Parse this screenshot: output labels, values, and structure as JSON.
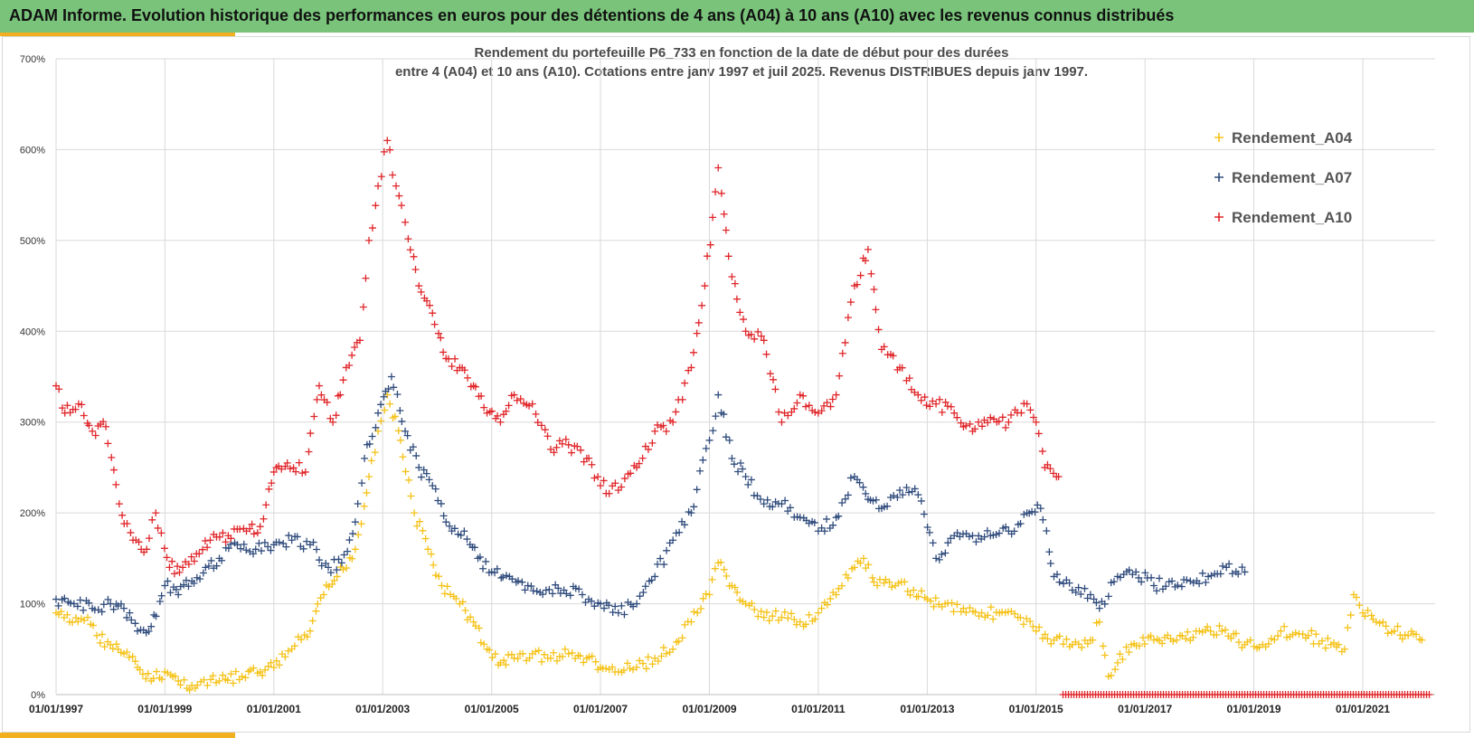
{
  "header": {
    "title": "ADAM Informe. Evolution historique des performances en euros pour des détentions de 4 ans (A04) à 10 ans (A10) avec les revenus connus distribués"
  },
  "chart_data": {
    "type": "scatter",
    "title_line1": "Rendement du portefeuille P6_733 en fonction de la date de début pour des durées",
    "title_line2": "entre 4 (A04) et 10 ans (A10). Cotations entre janv 1997 et juil 2025. Revenus DISTRIBUES depuis janv 1997.",
    "xlabel": "",
    "ylabel": "",
    "xlim": [
      "1997-01-01",
      "2022-05-01"
    ],
    "ylim": [
      0,
      700
    ],
    "y_ticks": [
      "0%",
      "100%",
      "200%",
      "300%",
      "400%",
      "500%",
      "600%",
      "700%"
    ],
    "x_ticks": [
      "01/01/1997",
      "01/01/1999",
      "01/01/2001",
      "01/01/2003",
      "01/01/2005",
      "01/01/2007",
      "01/01/2009",
      "01/01/2011",
      "01/01/2013",
      "01/01/2015",
      "01/01/2017",
      "01/01/2019",
      "01/01/2021"
    ],
    "grid": true,
    "legend_position": "top-right",
    "marker": "+",
    "series": [
      {
        "name": "Rendement_A04",
        "color": "#f5c218",
        "points": [
          [
            "1997-01-01",
            90
          ],
          [
            "1997-04-01",
            80
          ],
          [
            "1997-08-01",
            85
          ],
          [
            "1997-10-01",
            65
          ],
          [
            "1998-01-01",
            55
          ],
          [
            "1998-04-01",
            45
          ],
          [
            "1998-07-01",
            30
          ],
          [
            "1998-10-01",
            15
          ],
          [
            "1999-01-01",
            25
          ],
          [
            "1999-04-01",
            15
          ],
          [
            "1999-07-01",
            10
          ],
          [
            "2000-01-01",
            15
          ],
          [
            "2000-06-01",
            20
          ],
          [
            "2000-10-01",
            25
          ],
          [
            "2001-01-01",
            30
          ],
          [
            "2001-05-01",
            50
          ],
          [
            "2001-09-01",
            70
          ],
          [
            "2001-12-01",
            110
          ],
          [
            "2002-03-01",
            130
          ],
          [
            "2002-07-01",
            160
          ],
          [
            "2002-10-01",
            240
          ],
          [
            "2002-12-01",
            290
          ],
          [
            "2003-02-01",
            330
          ],
          [
            "2003-05-01",
            280
          ],
          [
            "2003-08-01",
            200
          ],
          [
            "2003-11-01",
            160
          ],
          [
            "2004-02-01",
            120
          ],
          [
            "2004-06-01",
            100
          ],
          [
            "2004-09-01",
            80
          ],
          [
            "2004-12-01",
            50
          ],
          [
            "2005-03-01",
            35
          ],
          [
            "2005-06-01",
            40
          ],
          [
            "2005-10-01",
            45
          ],
          [
            "2006-02-01",
            40
          ],
          [
            "2006-06-01",
            45
          ],
          [
            "2006-10-01",
            40
          ],
          [
            "2007-01-01",
            30
          ],
          [
            "2007-05-01",
            25
          ],
          [
            "2007-09-01",
            30
          ],
          [
            "2008-01-01",
            40
          ],
          [
            "2008-05-01",
            50
          ],
          [
            "2008-09-01",
            80
          ],
          [
            "2009-01-01",
            110
          ],
          [
            "2009-03-01",
            145
          ],
          [
            "2009-06-01",
            120
          ],
          [
            "2009-09-01",
            100
          ],
          [
            "2010-01-01",
            85
          ],
          [
            "2010-05-01",
            85
          ],
          [
            "2010-09-01",
            80
          ],
          [
            "2011-01-01",
            90
          ],
          [
            "2011-05-01",
            110
          ],
          [
            "2011-09-01",
            140
          ],
          [
            "2011-11-01",
            150
          ],
          [
            "2012-02-01",
            120
          ],
          [
            "2012-06-01",
            120
          ],
          [
            "2012-10-01",
            115
          ],
          [
            "2013-01-01",
            105
          ],
          [
            "2013-05-01",
            100
          ],
          [
            "2013-09-01",
            95
          ],
          [
            "2014-01-01",
            90
          ],
          [
            "2014-05-01",
            90
          ],
          [
            "2014-09-01",
            85
          ],
          [
            "2015-01-01",
            70
          ],
          [
            "2015-05-01",
            60
          ],
          [
            "2015-09-01",
            55
          ],
          [
            "2016-01-01",
            60
          ],
          [
            "2016-03-01",
            80
          ],
          [
            "2016-05-01",
            20
          ],
          [
            "2016-07-01",
            35
          ],
          [
            "2016-10-01",
            55
          ],
          [
            "2017-03-01",
            60
          ],
          [
            "2017-08-01",
            60
          ],
          [
            "2018-01-01",
            70
          ],
          [
            "2018-06-01",
            70
          ],
          [
            "2018-11-01",
            55
          ],
          [
            "2019-03-01",
            55
          ],
          [
            "2019-07-01",
            70
          ],
          [
            "2020-01-01",
            65
          ],
          [
            "2020-06-01",
            55
          ],
          [
            "2020-09-01",
            50
          ],
          [
            "2020-11-01",
            110
          ],
          [
            "2021-01-01",
            90
          ],
          [
            "2021-04-01",
            80
          ],
          [
            "2021-08-01",
            70
          ],
          [
            "2021-11-01",
            65
          ],
          [
            "2022-02-01",
            60
          ]
        ]
      },
      {
        "name": "Rendement_A07",
        "color": "#2f4b7c",
        "points": [
          [
            "1997-01-01",
            105
          ],
          [
            "1997-05-01",
            100
          ],
          [
            "1997-09-01",
            95
          ],
          [
            "1998-01-01",
            100
          ],
          [
            "1998-04-01",
            95
          ],
          [
            "1998-07-01",
            70
          ],
          [
            "1998-10-01",
            75
          ],
          [
            "1999-01-01",
            120
          ],
          [
            "1999-04-01",
            110
          ],
          [
            "1999-07-01",
            125
          ],
          [
            "1999-10-01",
            140
          ],
          [
            "2000-01-01",
            150
          ],
          [
            "2000-05-01",
            165
          ],
          [
            "2000-09-01",
            160
          ],
          [
            "2001-01-01",
            165
          ],
          [
            "2001-05-01",
            170
          ],
          [
            "2001-09-01",
            165
          ],
          [
            "2002-01-01",
            140
          ],
          [
            "2002-04-01",
            145
          ],
          [
            "2002-07-01",
            190
          ],
          [
            "2002-09-01",
            260
          ],
          [
            "2002-12-01",
            310
          ],
          [
            "2003-03-01",
            350
          ],
          [
            "2003-06-01",
            290
          ],
          [
            "2003-09-01",
            250
          ],
          [
            "2003-12-01",
            230
          ],
          [
            "2004-03-01",
            190
          ],
          [
            "2004-07-01",
            180
          ],
          [
            "2004-10-01",
            150
          ],
          [
            "2005-01-01",
            135
          ],
          [
            "2005-05-01",
            130
          ],
          [
            "2005-09-01",
            120
          ],
          [
            "2006-01-01",
            115
          ],
          [
            "2006-05-01",
            115
          ],
          [
            "2006-09-01",
            110
          ],
          [
            "2007-01-01",
            100
          ],
          [
            "2007-05-01",
            90
          ],
          [
            "2007-09-01",
            100
          ],
          [
            "2008-01-01",
            130
          ],
          [
            "2008-05-01",
            170
          ],
          [
            "2008-09-01",
            200
          ],
          [
            "2009-01-01",
            280
          ],
          [
            "2009-03-01",
            330
          ],
          [
            "2009-06-01",
            260
          ],
          [
            "2009-09-01",
            240
          ],
          [
            "2010-01-01",
            210
          ],
          [
            "2010-05-01",
            210
          ],
          [
            "2010-09-01",
            195
          ],
          [
            "2011-01-01",
            180
          ],
          [
            "2011-05-01",
            195
          ],
          [
            "2011-09-01",
            240
          ],
          [
            "2011-12-01",
            215
          ],
          [
            "2012-03-01",
            205
          ],
          [
            "2012-07-01",
            225
          ],
          [
            "2012-11-01",
            220
          ],
          [
            "2013-03-01",
            150
          ],
          [
            "2013-07-01",
            175
          ],
          [
            "2013-11-01",
            175
          ],
          [
            "2014-03-01",
            175
          ],
          [
            "2014-07-01",
            180
          ],
          [
            "2014-11-01",
            200
          ],
          [
            "2015-02-01",
            205
          ],
          [
            "2015-05-01",
            130
          ],
          [
            "2015-09-01",
            115
          ],
          [
            "2016-01-01",
            110
          ],
          [
            "2016-03-01",
            95
          ],
          [
            "2016-07-01",
            130
          ],
          [
            "2016-11-01",
            135
          ],
          [
            "2017-03-01",
            120
          ],
          [
            "2017-07-01",
            125
          ],
          [
            "2017-11-01",
            125
          ],
          [
            "2018-03-01",
            130
          ],
          [
            "2018-07-01",
            140
          ],
          [
            "2018-11-01",
            135
          ]
        ]
      },
      {
        "name": "Rendement_A10",
        "color": "#e0262a",
        "points": [
          [
            "1997-01-01",
            340
          ],
          [
            "1997-03-01",
            310
          ],
          [
            "1997-06-01",
            320
          ],
          [
            "1997-09-01",
            290
          ],
          [
            "1997-12-01",
            295
          ],
          [
            "1998-03-01",
            210
          ],
          [
            "1998-06-01",
            170
          ],
          [
            "1998-09-01",
            160
          ],
          [
            "1998-11-01",
            200
          ],
          [
            "1999-02-01",
            140
          ],
          [
            "1999-05-01",
            140
          ],
          [
            "1999-08-01",
            155
          ],
          [
            "1999-11-01",
            170
          ],
          [
            "2000-03-01",
            175
          ],
          [
            "2000-07-01",
            180
          ],
          [
            "2000-10-01",
            185
          ],
          [
            "2001-01-01",
            245
          ],
          [
            "2001-04-01",
            255
          ],
          [
            "2001-08-01",
            245
          ],
          [
            "2001-11-01",
            340
          ],
          [
            "2002-02-01",
            300
          ],
          [
            "2002-05-01",
            360
          ],
          [
            "2002-08-01",
            390
          ],
          [
            "2002-10-01",
            500
          ],
          [
            "2002-12-01",
            560
          ],
          [
            "2003-02-01",
            610
          ],
          [
            "2003-04-01",
            560
          ],
          [
            "2003-06-01",
            520
          ],
          [
            "2003-09-01",
            450
          ],
          [
            "2003-12-01",
            420
          ],
          [
            "2004-03-01",
            370
          ],
          [
            "2004-06-01",
            360
          ],
          [
            "2004-09-01",
            340
          ],
          [
            "2004-12-01",
            310
          ],
          [
            "2005-03-01",
            300
          ],
          [
            "2005-06-01",
            330
          ],
          [
            "2005-10-01",
            320
          ],
          [
            "2006-02-01",
            270
          ],
          [
            "2006-06-01",
            275
          ],
          [
            "2006-10-01",
            260
          ],
          [
            "2007-01-01",
            230
          ],
          [
            "2007-05-01",
            225
          ],
          [
            "2007-09-01",
            250
          ],
          [
            "2008-01-01",
            290
          ],
          [
            "2008-05-01",
            300
          ],
          [
            "2008-09-01",
            360
          ],
          [
            "2008-12-01",
            450
          ],
          [
            "2009-03-01",
            580
          ],
          [
            "2009-06-01",
            460
          ],
          [
            "2009-09-01",
            400
          ],
          [
            "2010-01-01",
            390
          ],
          [
            "2010-05-01",
            300
          ],
          [
            "2010-09-01",
            330
          ],
          [
            "2011-01-01",
            310
          ],
          [
            "2011-05-01",
            330
          ],
          [
            "2011-09-01",
            450
          ],
          [
            "2011-12-01",
            490
          ],
          [
            "2012-03-01",
            380
          ],
          [
            "2012-07-01",
            360
          ],
          [
            "2012-11-01",
            330
          ],
          [
            "2013-03-01",
            320
          ],
          [
            "2013-07-01",
            310
          ],
          [
            "2013-11-01",
            290
          ],
          [
            "2014-03-01",
            305
          ],
          [
            "2014-07-01",
            300
          ],
          [
            "2014-11-01",
            320
          ],
          [
            "2015-01-01",
            300
          ],
          [
            "2015-03-01",
            250
          ],
          [
            "2015-06-01",
            240
          ]
        ]
      }
    ],
    "zero_marker_range": [
      "2015-07-01",
      "2022-04-01"
    ]
  }
}
